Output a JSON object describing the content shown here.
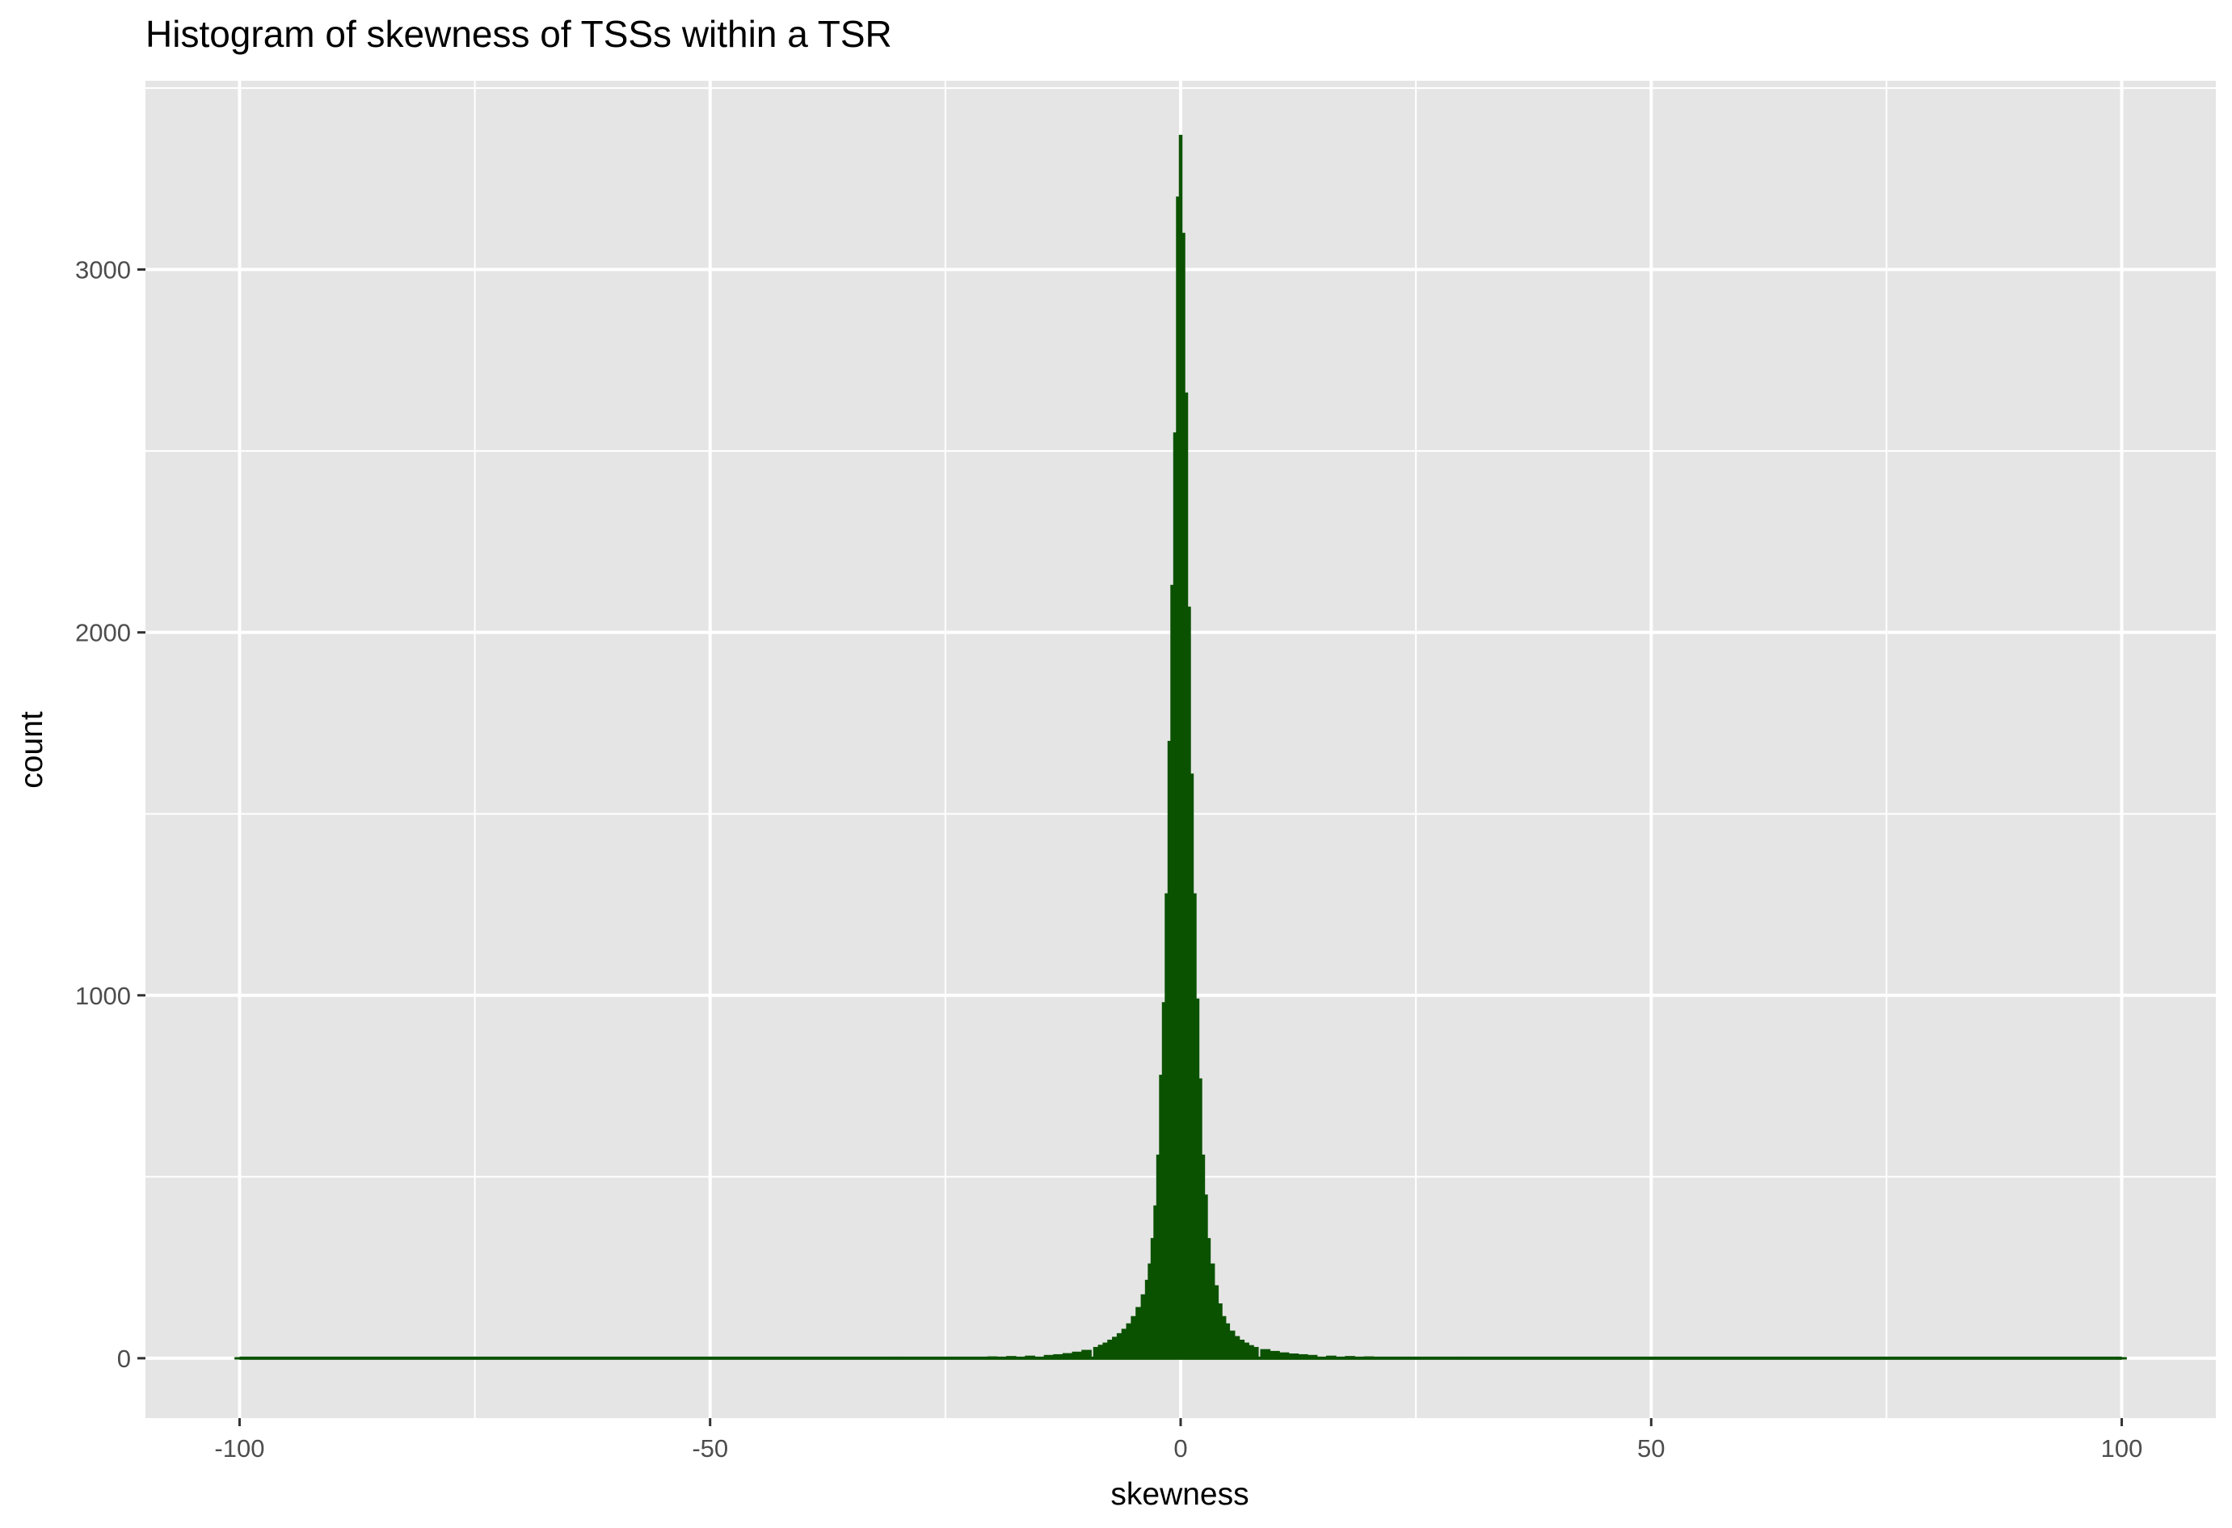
{
  "chart_data": {
    "type": "bar",
    "subtype": "histogram",
    "title": "Histogram of skewness of TSSs within a TSR",
    "xlabel": "skewness",
    "ylabel": "count",
    "xlim": [
      -110,
      110
    ],
    "ylim": [
      -165,
      3520
    ],
    "x_ticks": [
      -100,
      -50,
      0,
      50,
      100
    ],
    "x_tick_labels": [
      "-100",
      "-50",
      "0",
      "50",
      "100"
    ],
    "y_ticks": [
      0,
      1000,
      2000,
      3000
    ],
    "y_tick_labels": [
      "0",
      "1000",
      "2000",
      "3000"
    ],
    "grid": true,
    "legend": "none",
    "colors": {
      "bar_fill": "#0b5200",
      "panel_background": "#e5e5e5",
      "grid_line": "#ffffff"
    },
    "series": [
      {
        "bins": [
          {
            "x": -100,
            "count": 2
          },
          {
            "x": -30,
            "count": 2
          },
          {
            "x": -25,
            "count": 3
          },
          {
            "x": -20,
            "count": 4
          },
          {
            "x": -18,
            "count": 5
          },
          {
            "x": -16,
            "count": 6
          },
          {
            "x": -14,
            "count": 8
          },
          {
            "x": -13,
            "count": 10
          },
          {
            "x": -12,
            "count": 13
          },
          {
            "x": -11,
            "count": 17
          },
          {
            "x": -10,
            "count": 22
          },
          {
            "x": -9,
            "count": 30
          },
          {
            "x": -8.5,
            "count": 36
          },
          {
            "x": -8,
            "count": 42
          },
          {
            "x": -7.5,
            "count": 50
          },
          {
            "x": -7,
            "count": 58
          },
          {
            "x": -6.5,
            "count": 68
          },
          {
            "x": -6,
            "count": 80
          },
          {
            "x": -5.5,
            "count": 95
          },
          {
            "x": -5,
            "count": 115
          },
          {
            "x": -4.5,
            "count": 140
          },
          {
            "x": -4,
            "count": 175
          },
          {
            "x": -3.6,
            "count": 215
          },
          {
            "x": -3.3,
            "count": 260
          },
          {
            "x": -3,
            "count": 330
          },
          {
            "x": -2.7,
            "count": 420
          },
          {
            "x": -2.4,
            "count": 560
          },
          {
            "x": -2.1,
            "count": 780
          },
          {
            "x": -1.8,
            "count": 980
          },
          {
            "x": -1.5,
            "count": 1280
          },
          {
            "x": -1.2,
            "count": 1700
          },
          {
            "x": -0.9,
            "count": 2130
          },
          {
            "x": -0.6,
            "count": 2550
          },
          {
            "x": -0.3,
            "count": 3200
          },
          {
            "x": 0,
            "count": 3370
          },
          {
            "x": 0.3,
            "count": 3100
          },
          {
            "x": 0.6,
            "count": 2660
          },
          {
            "x": 0.9,
            "count": 2070
          },
          {
            "x": 1.2,
            "count": 1610
          },
          {
            "x": 1.5,
            "count": 1280
          },
          {
            "x": 1.8,
            "count": 990
          },
          {
            "x": 2.1,
            "count": 770
          },
          {
            "x": 2.4,
            "count": 560
          },
          {
            "x": 2.7,
            "count": 450
          },
          {
            "x": 3,
            "count": 330
          },
          {
            "x": 3.4,
            "count": 260
          },
          {
            "x": 3.8,
            "count": 200
          },
          {
            "x": 4.2,
            "count": 150
          },
          {
            "x": 4.6,
            "count": 115
          },
          {
            "x": 5,
            "count": 95
          },
          {
            "x": 5.5,
            "count": 75
          },
          {
            "x": 6,
            "count": 60
          },
          {
            "x": 6.5,
            "count": 50
          },
          {
            "x": 7,
            "count": 42
          },
          {
            "x": 7.5,
            "count": 35
          },
          {
            "x": 8,
            "count": 30
          },
          {
            "x": 9,
            "count": 24
          },
          {
            "x": 10,
            "count": 19
          },
          {
            "x": 11,
            "count": 15
          },
          {
            "x": 12,
            "count": 12
          },
          {
            "x": 13,
            "count": 10
          },
          {
            "x": 14,
            "count": 8
          },
          {
            "x": 16,
            "count": 6
          },
          {
            "x": 18,
            "count": 5
          },
          {
            "x": 20,
            "count": 4
          },
          {
            "x": 25,
            "count": 3
          },
          {
            "x": 30,
            "count": 2
          },
          {
            "x": 100,
            "count": 2
          }
        ]
      }
    ]
  }
}
